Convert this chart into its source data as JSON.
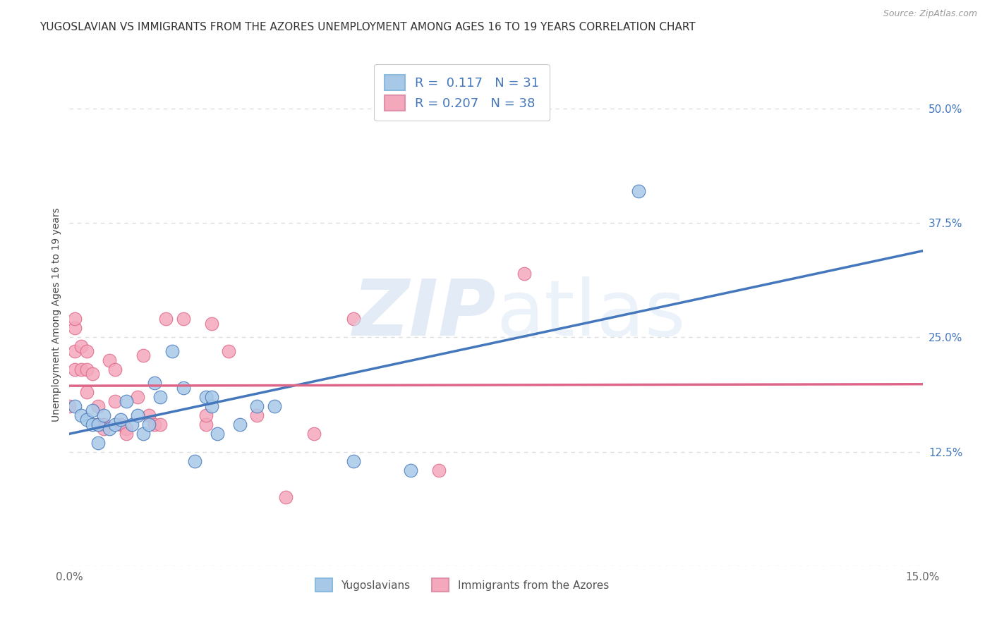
{
  "title": "YUGOSLAVIAN VS IMMIGRANTS FROM THE AZORES UNEMPLOYMENT AMONG AGES 16 TO 19 YEARS CORRELATION CHART",
  "source": "Source: ZipAtlas.com",
  "ylabel": "Unemployment Among Ages 16 to 19 years",
  "xmin": 0.0,
  "xmax": 0.15,
  "ymin": 0.0,
  "ymax": 0.55,
  "yticks": [
    0.0,
    0.125,
    0.25,
    0.375,
    0.5
  ],
  "ytick_labels": [
    "",
    "12.5%",
    "25.0%",
    "37.5%",
    "50.0%"
  ],
  "xticks": [
    0.0,
    0.025,
    0.05,
    0.075,
    0.1,
    0.125,
    0.15
  ],
  "xtick_labels": [
    "0.0%",
    "",
    "",
    "",
    "",
    "",
    "15.0%"
  ],
  "legend_R1": "0.117",
  "legend_N1": "31",
  "legend_R2": "0.207",
  "legend_N2": "38",
  "blue_color": "#A8C8E8",
  "pink_color": "#F4A8BC",
  "blue_line_color": "#4477BB",
  "pink_line_color": "#DD6688",
  "watermark_color": "#D0DFF0",
  "blue_x": [
    0.001,
    0.002,
    0.003,
    0.004,
    0.004,
    0.005,
    0.005,
    0.006,
    0.007,
    0.008,
    0.009,
    0.01,
    0.011,
    0.012,
    0.013,
    0.014,
    0.015,
    0.016,
    0.018,
    0.02,
    0.022,
    0.024,
    0.025,
    0.025,
    0.026,
    0.03,
    0.033,
    0.036,
    0.05,
    0.06,
    0.1
  ],
  "blue_y": [
    0.175,
    0.165,
    0.16,
    0.155,
    0.17,
    0.135,
    0.155,
    0.165,
    0.15,
    0.155,
    0.16,
    0.18,
    0.155,
    0.165,
    0.145,
    0.155,
    0.2,
    0.185,
    0.235,
    0.195,
    0.115,
    0.185,
    0.175,
    0.185,
    0.145,
    0.155,
    0.175,
    0.175,
    0.115,
    0.105,
    0.41
  ],
  "pink_x": [
    0.0,
    0.001,
    0.001,
    0.001,
    0.001,
    0.002,
    0.002,
    0.003,
    0.003,
    0.003,
    0.004,
    0.005,
    0.005,
    0.006,
    0.006,
    0.007,
    0.008,
    0.008,
    0.009,
    0.01,
    0.01,
    0.012,
    0.013,
    0.014,
    0.015,
    0.016,
    0.017,
    0.02,
    0.024,
    0.024,
    0.025,
    0.028,
    0.033,
    0.038,
    0.043,
    0.05,
    0.065,
    0.08
  ],
  "pink_y": [
    0.175,
    0.26,
    0.27,
    0.235,
    0.215,
    0.24,
    0.215,
    0.235,
    0.215,
    0.19,
    0.21,
    0.155,
    0.175,
    0.155,
    0.15,
    0.225,
    0.215,
    0.18,
    0.155,
    0.15,
    0.145,
    0.185,
    0.23,
    0.165,
    0.155,
    0.155,
    0.27,
    0.27,
    0.155,
    0.165,
    0.265,
    0.235,
    0.165,
    0.075,
    0.145,
    0.27,
    0.105,
    0.32
  ],
  "title_fontsize": 11,
  "tick_fontsize": 11,
  "source_fontsize": 9,
  "ylabel_fontsize": 10,
  "background_color": "#ffffff",
  "grid_color": "#dddddd"
}
